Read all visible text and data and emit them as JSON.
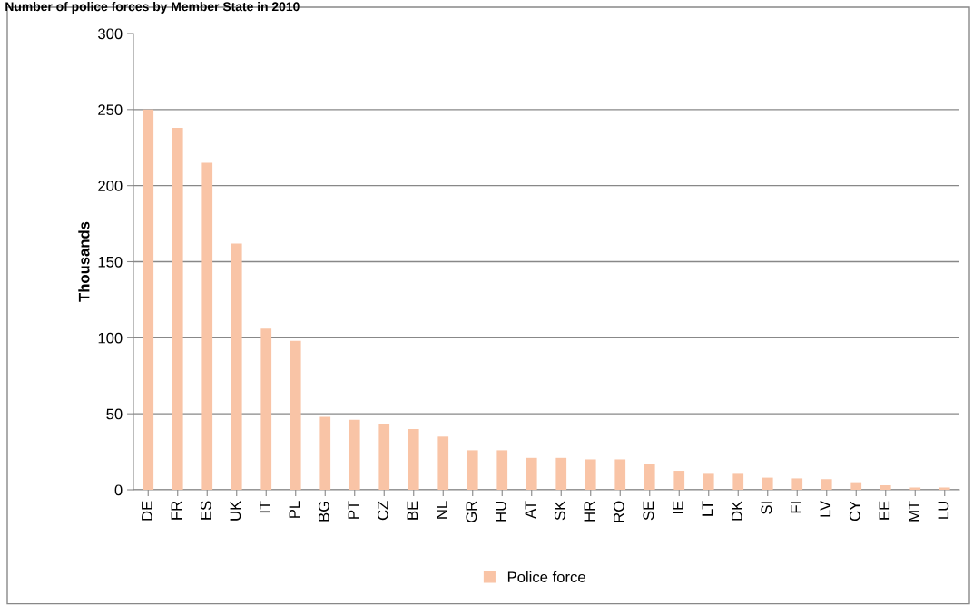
{
  "chart_data": {
    "type": "bar",
    "title": "Number of police forces by Member State in 2010",
    "ylabel": "Thousands",
    "categories": [
      "DE",
      "FR",
      "ES",
      "UK",
      "IT",
      "PL",
      "BG",
      "PT",
      "CZ",
      "BE",
      "NL",
      "GR",
      "HU",
      "AT",
      "SK",
      "HR",
      "RO",
      "SE",
      "IE",
      "LT",
      "DK",
      "SI",
      "FI",
      "LV",
      "CY",
      "EE",
      "MT",
      "LU"
    ],
    "series": [
      {
        "name": "Police force",
        "color": "#f9c4a6",
        "values": [
          250,
          238,
          215,
          162,
          106,
          98,
          48,
          46,
          43,
          40,
          35,
          26,
          26,
          21,
          21,
          20,
          20,
          17,
          12.5,
          10.5,
          10.5,
          8,
          7.5,
          7,
          5,
          3,
          1.5,
          1.5
        ]
      }
    ],
    "ylim": [
      0,
      300
    ],
    "yticks": [
      0,
      50,
      100,
      150,
      200,
      250,
      300
    ],
    "grid": "y",
    "legend": "bottom"
  }
}
